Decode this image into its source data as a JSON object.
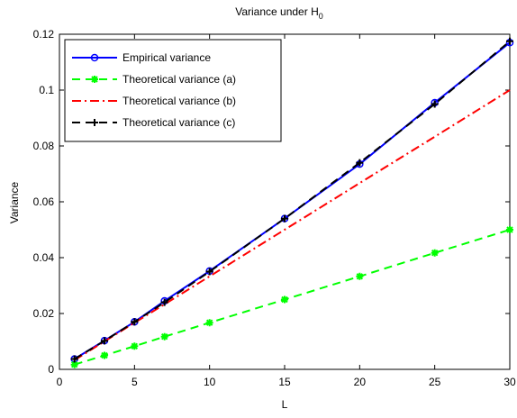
{
  "chart_data": {
    "type": "line",
    "title": "Variance under H",
    "title_subscript": "0",
    "xlabel": "L",
    "ylabel": "Variance",
    "xlim": [
      0,
      30
    ],
    "ylim": [
      0,
      0.12
    ],
    "xticks": [
      0,
      5,
      10,
      15,
      20,
      25,
      30
    ],
    "yticks": [
      0,
      0.02,
      0.04,
      0.06,
      0.08,
      0.1,
      0.12
    ],
    "xtick_labels": [
      "0",
      "5",
      "10",
      "15",
      "20",
      "25",
      "30"
    ],
    "ytick_labels": [
      "0",
      "0.02",
      "0.04",
      "0.06",
      "0.08",
      "0.1",
      "0.12"
    ],
    "grid": false,
    "legend_position": "top-left",
    "series": [
      {
        "name": "Empirical variance",
        "color": "#0000ff",
        "line_style": "solid",
        "marker": "circle",
        "x": [
          1,
          3,
          5,
          7,
          10,
          15,
          20,
          25,
          30
        ],
        "y": [
          0.0037,
          0.0103,
          0.017,
          0.0245,
          0.0352,
          0.054,
          0.0735,
          0.0955,
          0.117
        ]
      },
      {
        "name": "Theoretical variance (a)",
        "color": "#00ff00",
        "line_style": "dashed",
        "marker": "asterisk",
        "x": [
          1,
          3,
          5,
          7,
          10,
          15,
          20,
          25,
          30
        ],
        "y": [
          0.0017,
          0.005,
          0.0083,
          0.0117,
          0.0167,
          0.025,
          0.0333,
          0.0417,
          0.05
        ]
      },
      {
        "name": "Theoretical variance (b)",
        "color": "#ff0000",
        "line_style": "dashdot",
        "marker": "none",
        "x": [
          1,
          3,
          5,
          7,
          10,
          15,
          20,
          25,
          30
        ],
        "y": [
          0.0033,
          0.01,
          0.0167,
          0.0233,
          0.0333,
          0.05,
          0.0667,
          0.0833,
          0.1
        ]
      },
      {
        "name": "Theoretical variance (c)",
        "color": "#000000",
        "line_style": "dashed",
        "marker": "plus",
        "x": [
          1,
          3,
          5,
          7,
          10,
          15,
          20,
          25,
          30
        ],
        "y": [
          0.0037,
          0.0102,
          0.017,
          0.024,
          0.035,
          0.054,
          0.074,
          0.095,
          0.1175
        ]
      }
    ]
  }
}
